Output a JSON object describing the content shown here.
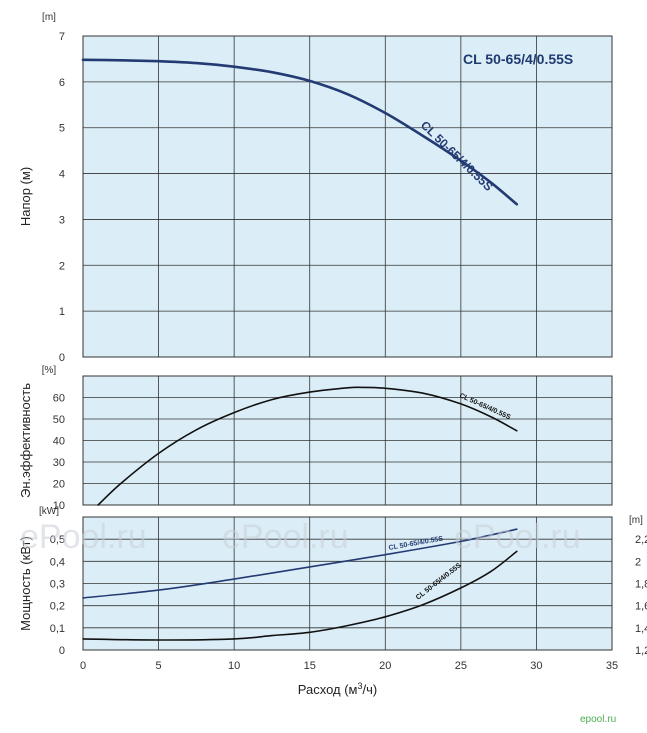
{
  "colors": {
    "panel_fill": "#dbeef7",
    "grid": "#333333",
    "head_curve": "#243a73",
    "efficiency_curve": "#111111",
    "power_curve": "#243a73",
    "npsh_curve": "#111111",
    "brand": "#4caf50"
  },
  "legend_title": "CL 50-65/4/0.55S",
  "watermark_text": "ePool.ru",
  "brand_text": "epool.ru",
  "chart_data": [
    {
      "type": "line",
      "panel": "head",
      "ylabel": "Напор (м)",
      "y_unit": "[m]",
      "xlim": [
        0,
        35
      ],
      "ylim": [
        0,
        7
      ],
      "y_ticks": [
        "0",
        "1",
        "2",
        "3",
        "4",
        "5",
        "6",
        "7"
      ],
      "grid": true,
      "series": [
        {
          "name": "CL 50-65/4/0.55S",
          "x": [
            0,
            2.5,
            5,
            7.5,
            10,
            12.5,
            15,
            17.5,
            20,
            22.5,
            25,
            27,
            28.7
          ],
          "y": [
            6.48,
            6.47,
            6.45,
            6.41,
            6.33,
            6.21,
            6.02,
            5.73,
            5.32,
            4.82,
            4.28,
            3.8,
            3.33
          ]
        }
      ]
    },
    {
      "type": "line",
      "panel": "efficiency",
      "ylabel": "Эн.эффективность",
      "y_unit": "[%]",
      "xlim": [
        0,
        35
      ],
      "ylim": [
        10,
        70
      ],
      "y_ticks": [
        "10",
        "20",
        "30",
        "40",
        "50",
        "60"
      ],
      "grid": true,
      "series": [
        {
          "name": "CL 50-65/4/0.55S",
          "x": [
            1,
            2.5,
            5,
            7.5,
            10,
            12.5,
            15,
            17.5,
            18.5,
            20,
            22.5,
            25,
            27,
            28.7
          ],
          "y": [
            10,
            20,
            34,
            45,
            53,
            59,
            62.5,
            64.5,
            64.7,
            64.3,
            62,
            57,
            51,
            44.5
          ]
        }
      ]
    },
    {
      "type": "line",
      "panel": "power_npsh",
      "xlabel": "Расход (м³/ч)",
      "ylabel": "Мощность (кВт)",
      "y_unit": "[kW]",
      "y2_unit": "[m]",
      "xlim": [
        0,
        35
      ],
      "ylim": [
        0,
        0.6
      ],
      "y2lim": [
        1.2,
        2.4
      ],
      "x_ticks": [
        "0",
        "5",
        "10",
        "15",
        "20",
        "25",
        "30",
        "35"
      ],
      "y_ticks": [
        "0",
        "0,1",
        "0,2",
        "0,3",
        "0,4",
        "0,5"
      ],
      "y2_ticks": [
        "1,2",
        "1,4",
        "1,6",
        "1,8",
        "2",
        "2,2"
      ],
      "grid": true,
      "series": [
        {
          "name": "CL 50-65/4/0.55S",
          "axis": "kW",
          "x": [
            0,
            5,
            10,
            15,
            20,
            25,
            28.7
          ],
          "y": [
            0.235,
            0.27,
            0.32,
            0.375,
            0.43,
            0.49,
            0.545
          ]
        },
        {
          "name": "CL 50-65/4/0.55S",
          "axis": "m",
          "x": [
            0,
            5,
            10,
            12.5,
            15,
            17.5,
            20,
            22.5,
            25,
            27,
            28.7
          ],
          "y": [
            1.3,
            1.29,
            1.3,
            1.33,
            1.36,
            1.42,
            1.5,
            1.61,
            1.76,
            1.91,
            2.09
          ]
        }
      ]
    }
  ]
}
